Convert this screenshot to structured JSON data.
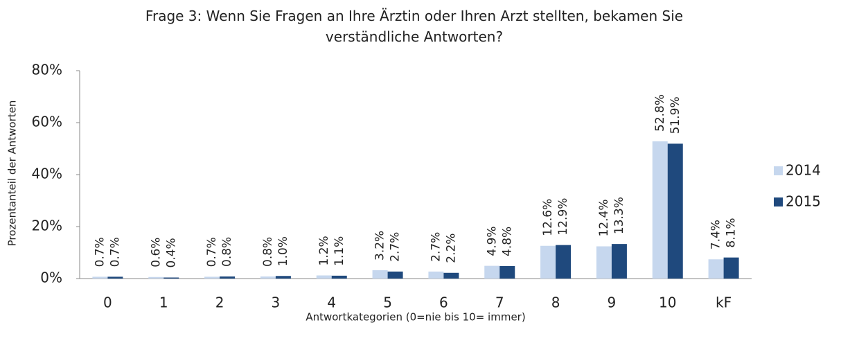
{
  "chart_data": {
    "type": "bar",
    "title": "Frage 3: Wenn Sie Fragen an Ihre Ärztin oder Ihren Arzt stellten, bekamen Sie verständliche Antworten?",
    "x_label": "Antwortkategorien (0=nie bis 10= immer)",
    "y_label": "Prozentanteil der Antworten",
    "categories": [
      "0",
      "1",
      "2",
      "3",
      "4",
      "5",
      "6",
      "7",
      "8",
      "9",
      "10",
      "kF"
    ],
    "series": [
      {
        "name": "2014",
        "color": "#c6d7ee",
        "values": [
          0.7,
          0.6,
          0.7,
          0.8,
          1.2,
          3.2,
          2.7,
          4.9,
          12.6,
          12.4,
          52.8,
          7.4
        ],
        "value_labels": [
          "0.7%",
          "0.6%",
          "0.7%",
          "0.8%",
          "1.2%",
          "3.2%",
          "2.7%",
          "4.9%",
          "12.6%",
          "12.4%",
          "52.8%",
          "7.4%"
        ]
      },
      {
        "name": "2015",
        "color": "#1f497d",
        "values": [
          0.7,
          0.4,
          0.8,
          1.0,
          1.1,
          2.7,
          2.2,
          4.8,
          12.9,
          13.3,
          51.9,
          8.1
        ],
        "value_labels": [
          "0.7%",
          "0.4%",
          "0.8%",
          "1.0%",
          "1.1%",
          "2.7%",
          "2.2%",
          "4.8%",
          "12.9%",
          "13.3%",
          "51.9%",
          "8.1%"
        ]
      }
    ],
    "ylim": [
      0,
      80
    ],
    "yticks": [
      {
        "value": 0,
        "label": "0%"
      },
      {
        "value": 20,
        "label": "20%"
      },
      {
        "value": 40,
        "label": "40%"
      },
      {
        "value": 60,
        "label": "60%"
      },
      {
        "value": 80,
        "label": "80%"
      }
    ],
    "grid": false,
    "legend": "right"
  }
}
